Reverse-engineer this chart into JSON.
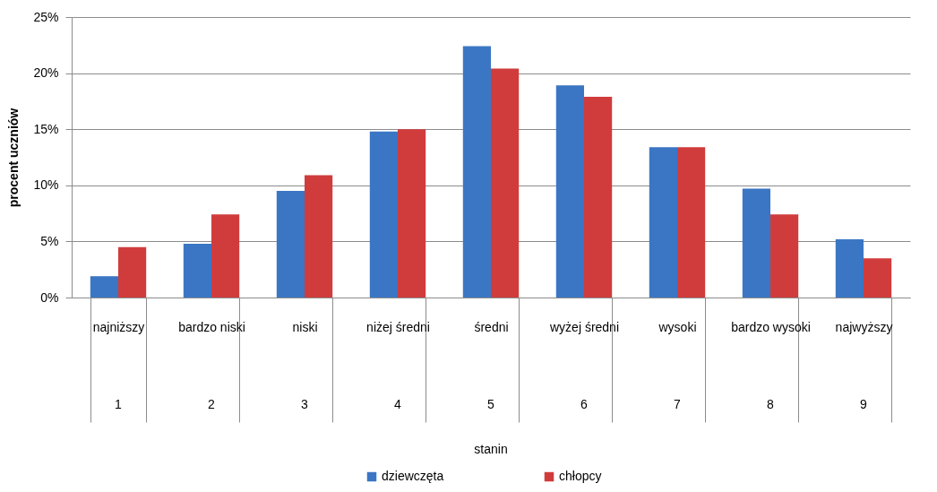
{
  "chart_data": {
    "type": "bar",
    "ylabel": "procent uczniów",
    "categories": [
      "najniższy",
      "bardzo niski",
      "niski",
      "niżej średni",
      "średni",
      "wyżej średni",
      "wysoki",
      "bardzo wysoki",
      "najwyższy"
    ],
    "series": [
      {
        "name": "dziewczęta",
        "color": "#3b76c4",
        "values": [
          1.9,
          4.8,
          9.5,
          14.8,
          22.4,
          18.9,
          13.4,
          9.7,
          5.2
        ]
      },
      {
        "name": "chłopcy",
        "color": "#d03c3c",
        "values": [
          4.5,
          7.4,
          10.9,
          15.0,
          20.4,
          17.9,
          13.4,
          7.4,
          3.5
        ]
      }
    ],
    "ylim": [
      0,
      25
    ],
    "yticks": [
      {
        "value": 0,
        "label": "0%"
      },
      {
        "value": 5,
        "label": "5%"
      },
      {
        "value": 10,
        "label": "10%"
      },
      {
        "value": 15,
        "label": "15%"
      },
      {
        "value": 20,
        "label": "20%"
      },
      {
        "value": 25,
        "label": "25%"
      }
    ],
    "grid": "y",
    "legend": "bottom",
    "annotations": [
      "1",
      "2",
      "3",
      "4",
      "5",
      "6",
      "7",
      "8",
      "9",
      "stanin"
    ]
  }
}
